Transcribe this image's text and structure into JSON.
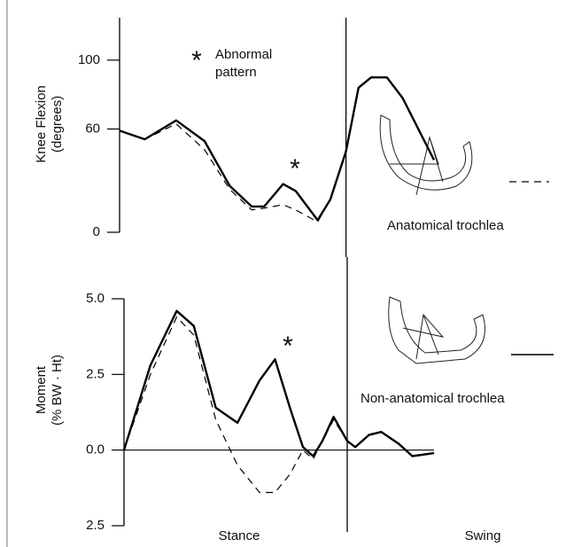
{
  "chart_data": [
    {
      "type": "line",
      "y_label": [
        "Knee Flexion",
        "(degrees)"
      ],
      "xlim": [
        0,
        100
      ],
      "ylim": [
        0,
        120
      ],
      "yticks": [
        0,
        60,
        100
      ],
      "vline": 72,
      "x": [
        0,
        8,
        18,
        27,
        35,
        42,
        46,
        52,
        56,
        63,
        67,
        72,
        76,
        80,
        85,
        90,
        100
      ],
      "series": [
        {
          "color": "#000000",
          "dashed": false,
          "values": [
            59,
            54,
            65,
            53,
            27,
            15,
            15,
            28,
            24,
            7,
            19,
            47,
            84,
            90,
            90,
            78,
            42
          ]
        },
        {
          "name": "Anatomical trochlea",
          "color": "#000000",
          "dashed": true,
          "values": [
            59,
            54,
            63,
            48,
            25,
            13,
            14,
            16,
            13,
            6,
            19,
            47,
            null,
            null,
            null,
            null,
            null
          ]
        }
      ],
      "annotations": [
        "*",
        "Abnormal",
        "pattern",
        "*"
      ]
    },
    {
      "type": "line",
      "y_label": [
        "Moment",
        "(% BW · Ht)"
      ],
      "xlim": [
        0,
        100
      ],
      "ylim": [
        -2.5,
        5.0
      ],
      "yticks": [
        {
          "value": 5.0,
          "label": "5.0"
        },
        {
          "value": 2.5,
          "label": "2.5"
        },
        {
          "value": 0,
          "label": "0.0"
        },
        {
          "value": -2.5,
          "label": "2.5"
        }
      ],
      "vline": 72,
      "x": [
        0,
        8.5,
        17,
        22.5,
        29.6,
        36.6,
        43.7,
        48.7,
        53.5,
        57.7,
        61,
        64,
        67.6,
        72,
        74.6,
        79,
        83,
        88.7,
        93,
        100
      ],
      "series": [
        {
          "name": "Non-anatomical trochlea",
          "color": "#000000",
          "dashed": false,
          "values": [
            0,
            2.8,
            4.6,
            4.1,
            1.4,
            0.9,
            2.3,
            3.0,
            1.4,
            0.1,
            -0.2,
            0.3,
            1.1,
            0.3,
            0.1,
            0.5,
            0.6,
            0.2,
            -0.2,
            -0.1
          ]
        },
        {
          "color": "#000000",
          "dashed": true,
          "values": [
            0,
            2.5,
            4.4,
            3.8,
            1.0,
            -0.5,
            -1.4,
            -1.4,
            -0.8,
            0.0,
            -0.3,
            0.3,
            1.0,
            0.3,
            null,
            null,
            null,
            null,
            null,
            null
          ]
        }
      ],
      "phase_labels": [
        "Stance",
        "Swing"
      ],
      "annotations": [
        "*"
      ]
    }
  ]
}
